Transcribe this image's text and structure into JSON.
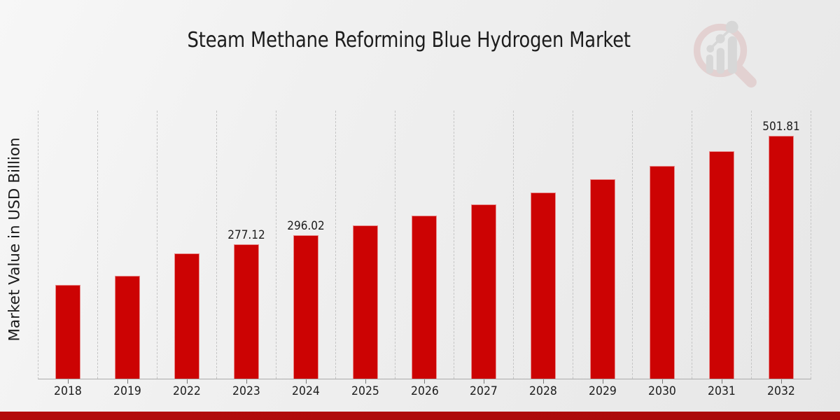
{
  "chart_data": {
    "type": "bar",
    "title": "Steam Methane Reforming Blue Hydrogen Market",
    "ylabel": "Market Value in USD Billion",
    "xlabel": "",
    "categories": [
      "2018",
      "2019",
      "2022",
      "2023",
      "2024",
      "2025",
      "2026",
      "2027",
      "2028",
      "2029",
      "2030",
      "2031",
      "2032"
    ],
    "values": [
      193.4,
      212.4,
      259.4,
      277.12,
      296.02,
      316.2,
      337.8,
      360.8,
      385.4,
      411.7,
      439.8,
      469.8,
      501.81
    ],
    "data_labels": {
      "2023": "277.12",
      "2024": "296.02",
      "2032": "501.81"
    },
    "ylim": [
      0,
      554
    ],
    "grid": "vertical-dashed",
    "legend": "none",
    "bar_color": "#cc0303",
    "gridline_color": "#c6c6c6",
    "axis_line_color": "#ababab"
  },
  "footer": {
    "accent_color": "#b30c0c"
  },
  "logo": {
    "icon": "magnifier-bar-chart-logo-icon",
    "ring_color": "#dcb9b9",
    "bars_color": "#c5c5c5"
  }
}
